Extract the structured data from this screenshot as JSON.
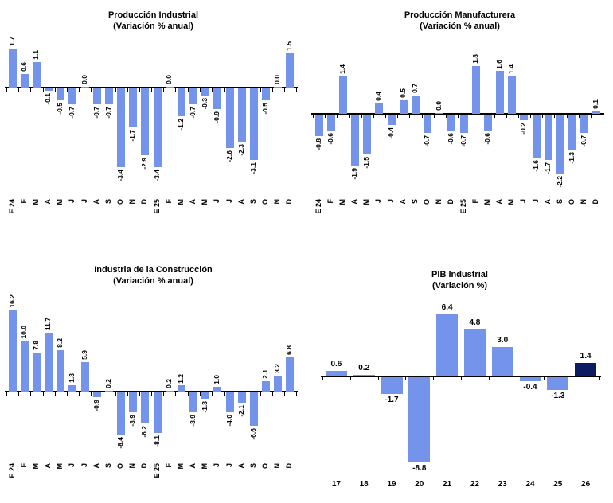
{
  "chart_data": [
    {
      "type": "bar",
      "title": "Producción Industrial",
      "subtitle": "(Variación % anual)",
      "categories": [
        "E 24",
        "F",
        "M",
        "A",
        "M",
        "J",
        "J",
        "A",
        "S",
        "O",
        "N",
        "D",
        "E 25",
        "F",
        "M",
        "A",
        "M",
        "J",
        "J",
        "A",
        "S",
        "O",
        "N",
        "D"
      ],
      "values": [
        1.7,
        0.6,
        1.1,
        -0.1,
        -0.5,
        -0.7,
        0.0,
        -0.7,
        -0.7,
        -3.4,
        -1.7,
        -2.9,
        -3.4,
        0.0,
        -1.2,
        -0.7,
        -0.3,
        -0.9,
        -2.6,
        -2.3,
        -3.1,
        -0.5,
        0.0,
        1.5
      ],
      "bar_color": "#7494EB",
      "axis_color": "#000000",
      "value_labels_rotated": true,
      "gridlines": false,
      "legend": "none"
    },
    {
      "type": "bar",
      "title": "Producción Manufacturera",
      "subtitle": "(Variación % anual)",
      "categories": [
        "E 24",
        "F",
        "M",
        "A",
        "M",
        "J",
        "J",
        "A",
        "S",
        "O",
        "N",
        "D",
        "E 25",
        "F",
        "M",
        "A",
        "M",
        "J",
        "J",
        "A",
        "S",
        "O",
        "N",
        "D"
      ],
      "values": [
        -0.8,
        -0.6,
        1.4,
        -1.9,
        -1.5,
        0.4,
        -0.4,
        0.5,
        0.7,
        -0.7,
        0.0,
        -0.6,
        -0.7,
        1.8,
        -0.6,
        1.6,
        1.4,
        -0.2,
        -1.6,
        -1.7,
        -2.2,
        -1.3,
        -0.7,
        0.1
      ],
      "bar_color": "#7494EB",
      "axis_color": "#000000",
      "value_labels_rotated": true,
      "gridlines": false,
      "legend": "none"
    },
    {
      "type": "bar",
      "title": "Industria de la Construcción",
      "subtitle": "(Variación % anual)",
      "categories": [
        "E 24",
        "F",
        "M",
        "A",
        "M",
        "J",
        "J",
        "A",
        "S",
        "O",
        "N",
        "D",
        "E 25",
        "F",
        "M",
        "A",
        "M",
        "J",
        "J",
        "A",
        "S",
        "O",
        "N",
        "D"
      ],
      "values": [
        16.2,
        10.0,
        7.8,
        11.7,
        8.2,
        1.3,
        5.9,
        -0.9,
        0.2,
        -8.4,
        -3.9,
        -6.2,
        -8.1,
        0.2,
        1.2,
        -3.9,
        -1.3,
        1.0,
        -4.0,
        -2.1,
        -6.6,
        2.1,
        3.2,
        6.8
      ],
      "bar_color": "#7494EB",
      "axis_color": "#000000",
      "value_labels_rotated": true,
      "gridlines": false,
      "legend": "none"
    },
    {
      "type": "bar",
      "title": "PIB Industrial",
      "subtitle": "(Variación %)",
      "categories": [
        "17",
        "18",
        "19",
        "20",
        "21",
        "22",
        "23",
        "24",
        "25",
        "26"
      ],
      "values": [
        0.6,
        0.2,
        -1.7,
        -8.8,
        6.4,
        4.8,
        3.0,
        -0.4,
        -1.3,
        1.4
      ],
      "bar_color": "#7494EB",
      "highlight_index": 9,
      "highlight_color": "#0B1C63",
      "axis_color": "#000000",
      "value_labels_rotated": false,
      "gridlines": false,
      "legend": "none"
    }
  ]
}
